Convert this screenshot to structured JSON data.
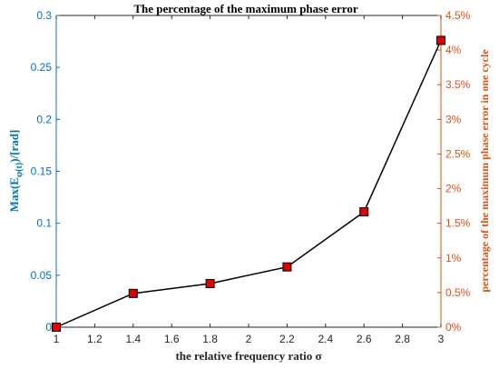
{
  "chart_data": {
    "type": "line",
    "title": "The percentage of the maximum phase error",
    "xlabel": "the relative frequency ratio σ",
    "ylabel_left": "Max(E",
    "ylabel_left_sub": "φ(t)",
    "ylabel_left_suffix": ")/[rad]",
    "ylabel_right": "percentage of the maximum phase error in one cycle",
    "xlim": [
      1,
      3
    ],
    "xticks": [
      "1",
      "1.2",
      "1.4",
      "1.6",
      "1.8",
      "2",
      "2.2",
      "2.4",
      "2.6",
      "2.8",
      "3"
    ],
    "ylim_left": [
      0,
      0.3
    ],
    "yticks_left": [
      "0",
      "0.05",
      "0.1",
      "0.15",
      "0.2",
      "0.25",
      "0.3"
    ],
    "ylim_right": [
      0,
      4.5
    ],
    "yticks_right": [
      "0%",
      "0.5%",
      "1%",
      "1.5%",
      "2%",
      "2.5%",
      "3%",
      "3.5%",
      "4%",
      "4.5%"
    ],
    "series": [
      {
        "x": [
          1.0,
          1.4,
          1.8,
          2.2,
          2.6,
          3.0
        ],
        "y": [
          0.0,
          0.0325,
          0.042,
          0.058,
          0.111,
          0.276
        ],
        "line_color": "#000000",
        "marker": "square",
        "marker_fill": "#e00000"
      }
    ],
    "colors": {
      "left_axis": "#0072bd",
      "right_axis": "#d95319",
      "x_axis": "#262626"
    },
    "grid": false
  }
}
